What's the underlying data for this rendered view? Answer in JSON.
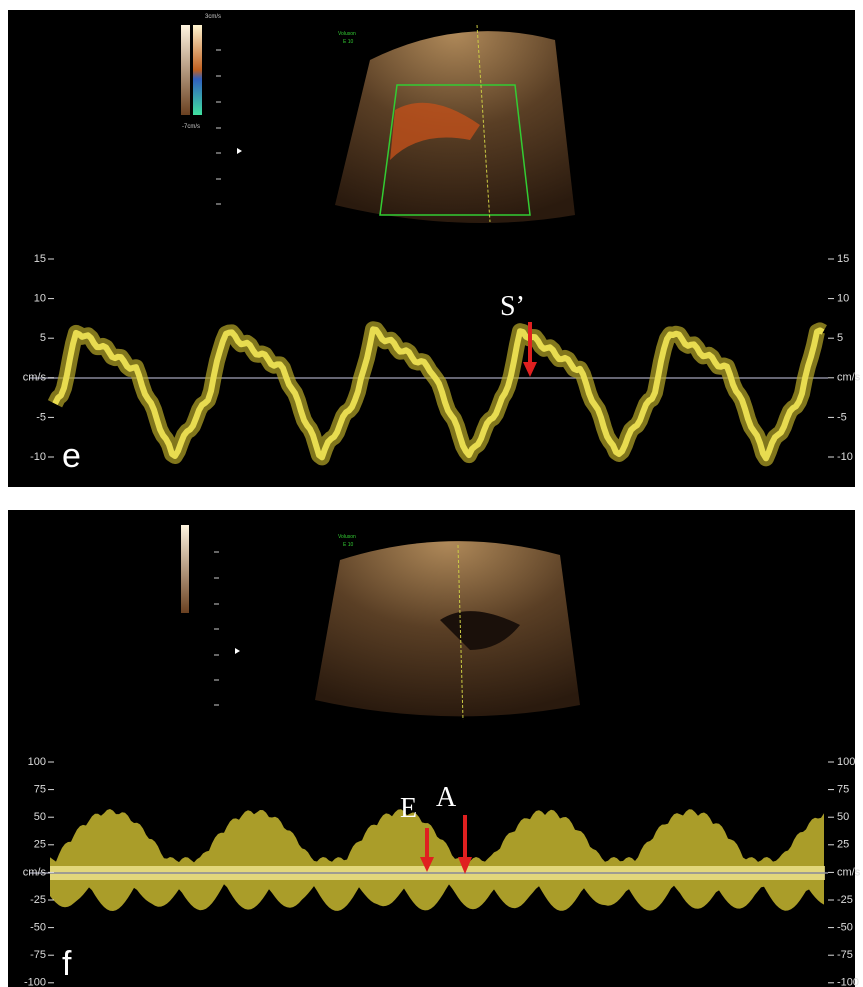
{
  "panels": [
    {
      "label": "e",
      "device_label": [
        "Voluson",
        "E 10"
      ],
      "colorbar_labels": [
        "3cm/s",
        "-7cm/s"
      ],
      "annotations": [
        "S’"
      ],
      "scale": [
        "15",
        "10",
        "5",
        "cm/s",
        "-5",
        "-10"
      ]
    },
    {
      "label": "f",
      "device_label": [
        "Voluson",
        "E 10"
      ],
      "annotations": [
        "E",
        "A"
      ],
      "scale": [
        "100",
        "75",
        "50",
        "25",
        "cm/s",
        "-25",
        "-50",
        "-75",
        "-100"
      ]
    }
  ]
}
